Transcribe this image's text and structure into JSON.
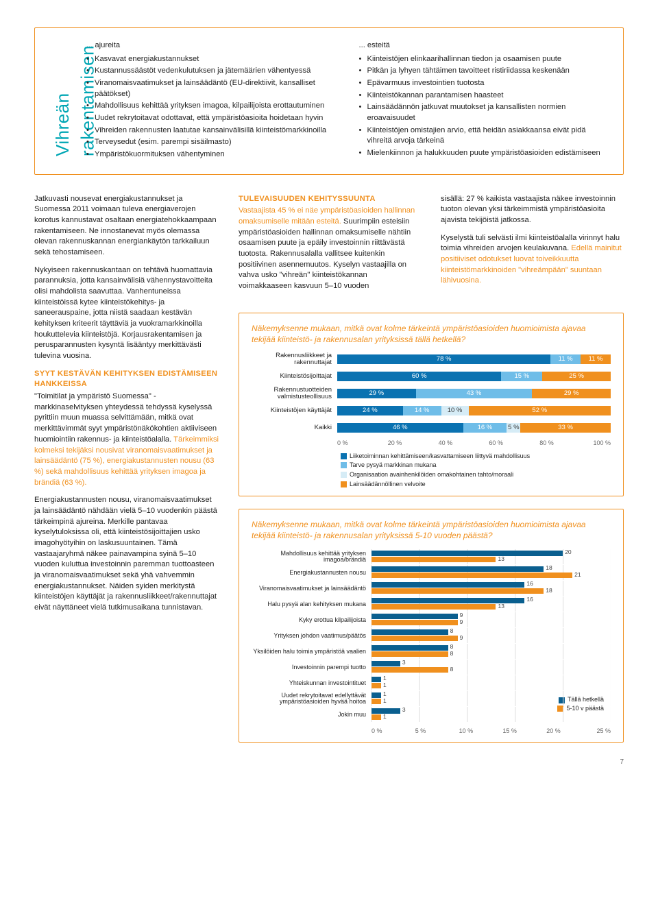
{
  "vertical_title": "Vihreän rakentamisen",
  "top_box": {
    "col1": {
      "title": "... ajureita",
      "items": [
        "Kasvavat energiakustannukset",
        "Kustannussäästöt vedenkulutuksen ja jätemäärien vähentyessä",
        "Viranomaisvaatimukset ja lainsäädäntö (EU-direktiivit, kansalliset päätökset)",
        "Mahdollisuus kehittää yrityksen imagoa, kilpailijoista erottautuminen",
        "Uudet rekrytoitavat odottavat, että ympäristöasioita hoidetaan hyvin",
        "Vihreiden rakennusten laatutae kansainvälisillä kiinteistömarkkinoilla",
        "Terveysedut (esim. parempi sisäilmasto)",
        "Ympäristökuormituksen vähentyminen"
      ]
    },
    "col2": {
      "title": "... esteitä",
      "items": [
        "Kiinteistöjen elinkaarihallinnan tiedon ja osaamisen puute",
        "Pitkän ja lyhyen tähtäimen tavoitteet ristiriidassa keskenään",
        "Epävarmuus investointien tuotosta",
        "Kiinteistökannan parantamisen haasteet",
        "Lainsäädännön jatkuvat muutokset ja kansallisten normien eroavaisuudet",
        "Kiinteistöjen omistajien arvio, että heidän asiakkaansa eivät pidä vihreitä arvoja tärkeinä",
        "Mielenkiinnon ja halukkuuden puute ympäristöasioiden edistämiseen"
      ]
    }
  },
  "left_col": {
    "p1": "Jatkuvasti nousevat energiakustannukset ja Suomessa 2011 voimaan tuleva energiaverojen korotus kannustavat osaltaan energiatehokkaampaan rakentamiseen. Ne innostanevat myös olemassa olevan rakennuskannan energiankäytön tarkkailuun sekä tehostamiseen.",
    "p2": "Nykyiseen rakennuskantaan on tehtävä huomattavia parannuksia, jotta kansainvälisiä vähennystavoitteita olisi mahdolista saavuttaa. Vanhentuneissa kiinteistöissä kytee kiinteistökehitys- ja saneerauspaine, jotta niistä saadaan kestävän kehityksen kriteerit täyttäviä ja vuokramarkkinoilla houkuttelevia kiinteistöjä. Korjausrakentamisen ja perusparannusten kysyntä lisääntyy merkittävästi tulevina vuosina.",
    "h1": "SYYT KESTÄVÄN KEHITYKSEN EDISTÄMISEEN HANKKEISSA",
    "p3a": "\"Toimitilat ja ympäristö Suomessa\" -markkinaselvityksen yhteydessä tehdyssä kyselyssä pyrittiin muun muassa selvittämään, mitkä ovat merkittävimmät syyt ympäristönäkökohtien aktiiviseen huomiointiin rakennus- ja kiinteistöalalla. ",
    "p3b": "Tärkeimmiksi kolmeksi tekijäksi nousivat viranomaisvaatimukset ja lainsäädäntö (75 %), energiakustannusten nousu (63 %) sekä mahdollisuus kehittää yrityksen imagoa ja brändiä (63 %).",
    "p4a": "Energiakustannusten nousu, viranomaisvaatimukset ja lainsäädäntö nähdään vielä 5–10 vuodenkin päästä tärkeimpinä ajureina. Merkille pantavaa kyselytuloksissa oli, että kiinteistösijoittajien usko imagohyötyihin on laskusuuntainen. ",
    "p4b": "Tämä vastaajaryhmä näkee painavampina syinä 5–10 vuoden kuluttua investoinnin paremman tuottoasteen ja viranomaisvaatimukset sekä yhä vahvemmin energiakustannukset. Näiden syiden merkitystä kiinteistöjen käyttäjät ja rakennusliikkeet/rakennuttajat eivät näyttäneet vielä tutkimusaikana tunnistavan."
  },
  "mid_col": {
    "h1": "TULEVAISUUDEN KEHITYSSUUNTA",
    "p1a": "Vastaajista 45 % ei näe ympäristöasioiden hallinnan omaksumiselle mitään esteitä.",
    "p1b": " Suurimpiin esteisiin ympäristöasioiden hallinnan omaksumiselle nähtiin osaamisen puute ja epäily investoinnin riittävästä tuotosta. Rakennusalalla vallitsee kuitenkin positiivinen asennemuutos. Kyselyn vastaajilla on vahva usko \"vihreän\" kiinteistökannan voimakkaaseen kasvuun 5–10 vuoden"
  },
  "right_col": {
    "p1": "sisällä: 27 % kaikista vastaajista näkee investoinnin tuoton olevan yksi tärkeimmistä ympäristöasioita ajavista tekijöistä jatkossa.",
    "p2a": "Kyselystä tuli selvästi ilmi kiinteistöalalla virinnyt halu toimia vihreiden arvojen keulakuvana. ",
    "p2b": "Edellä mainitut positiiviset odotukset luovat toiveikkuutta kiinteistömarkkinoiden \"vihreämpään\" suuntaan lähivuosina."
  },
  "chart1": {
    "title": "Näkemyksenne mukaan, mitkä ovat kolme tärkeintä ympäristöasioiden huomioimista ajavaa tekijää kiinteistö- ja rakennusalan yrityksissä tällä hetkellä?",
    "categories": [
      "Rakennusliikkeet ja rakennuttajat",
      "Kiinteistösijoittajat",
      "Rakennustuotteiden valmistusteollisuus",
      "Kiinteistöjen käyttäjät",
      "Kaikki"
    ],
    "series": [
      {
        "name": "Liiketoiminnan kehittämiseen/kasvattamiseen liittyvä mahdollisuus",
        "color": "#0a72b1",
        "values": [
          78,
          60,
          29,
          24,
          46
        ]
      },
      {
        "name": "Tarve pysyä markkinan mukana",
        "color": "#6fbde8",
        "values": [
          11,
          15,
          43,
          14,
          16
        ]
      },
      {
        "name": "Organisaation avainhenkilöiden omakohtainen tahto/moraali",
        "color": "#d6ecf6",
        "values": [
          0,
          0,
          0,
          10,
          5
        ]
      },
      {
        "name": "Lainsäädännöllinen velvoite",
        "color": "#f0901e",
        "values": [
          11,
          25,
          29,
          52,
          33
        ]
      }
    ],
    "xaxis": [
      "0 %",
      "20 %",
      "40 %",
      "60 %",
      "80 %",
      "100 %"
    ]
  },
  "chart2": {
    "title": "Näkemyksenne mukaan, mitkä ovat kolme tärkeintä ympäristöasioiden huomioimista ajavaa tekijää kiinteistö- ja rakennusalan yrityksissä 5-10 vuoden päästä?",
    "categories": [
      "Mahdollisuus kehittää yrityksen imagoa/brändiä",
      "Energiakustannusten nousu",
      "Viranomaisvaatimukset ja lainsäädäntö",
      "Halu pysyä alan kehityksen mukana",
      "Kyky erottua kilpailijoista",
      "Yrityksen johdon vaatimus/päätös",
      "Yksilöiden halu toimia ympäristöä vaalien",
      "Investoinnin parempi tuotto",
      "Yhteiskunnan investointituet",
      "Uudet rekrytoitavat edellyttävät ympäristöasioiden hyvää hoitoa",
      "Jokin muu"
    ],
    "legend": [
      {
        "name": "Tällä hetkellä",
        "color": "#0a5f8f"
      },
      {
        "name": "5-10 v päästä",
        "color": "#f0901e"
      }
    ],
    "series": {
      "a_color": "#0a5f8f",
      "b_color": "#f0901e",
      "a": [
        20,
        18,
        16,
        16,
        9,
        8,
        8,
        3,
        1,
        1,
        3
      ],
      "b": [
        13,
        21,
        18,
        13,
        9,
        9,
        8,
        8,
        1,
        1,
        1
      ]
    },
    "xaxis": [
      "0 %",
      "5 %",
      "10 %",
      "15 %",
      "20 %",
      "25 %"
    ],
    "xmax": 25
  },
  "page_number": "7"
}
